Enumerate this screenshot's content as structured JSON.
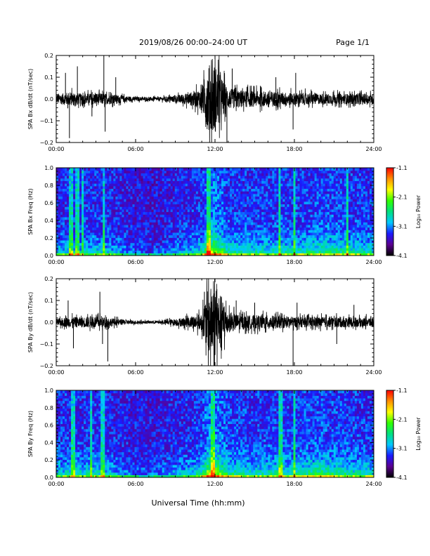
{
  "header": {
    "title": "2019/08/26  00:00–24:00 UT",
    "page_label": "Page 1/1"
  },
  "footer": {
    "xlabel": "Universal Time (hh:mm)"
  },
  "colors": {
    "trace": "#000000",
    "colorbar": [
      "#000000",
      "#5b0090",
      "#1a1aff",
      "#00c8ff",
      "#00e080",
      "#30ff00",
      "#ffff00",
      "#ff9000",
      "#ff0000"
    ]
  },
  "chart_data": [
    {
      "type": "line",
      "ylabel": "SPA Bx dB/dt (nT/sec)",
      "xlim": [
        0,
        24
      ],
      "ylim": [
        -0.2,
        0.2
      ],
      "xticks": [
        "00:00",
        "06:00",
        "12:00",
        "18:00",
        "24:00"
      ],
      "xtick_values": [
        0,
        6,
        12,
        18,
        24
      ],
      "yticks": [
        "−0.2",
        "−0.1",
        "0.0",
        "0.1",
        "0.2"
      ],
      "ytick_values": [
        -0.2,
        -0.1,
        0.0,
        0.1,
        0.2
      ],
      "amplitude_envelope": {
        "hour": [
          0,
          1,
          2,
          3,
          4,
          5,
          6,
          7,
          8,
          9,
          10,
          11,
          11.5,
          12,
          12.5,
          13,
          14,
          15,
          16,
          17,
          18,
          19,
          20,
          21,
          22,
          23,
          24
        ],
        "amplitude": [
          0.025,
          0.04,
          0.03,
          0.035,
          0.03,
          0.02,
          0.012,
          0.01,
          0.012,
          0.02,
          0.035,
          0.06,
          0.2,
          0.2,
          0.12,
          0.06,
          0.05,
          0.045,
          0.045,
          0.04,
          0.035,
          0.035,
          0.03,
          0.03,
          0.03,
          0.03,
          0.03
        ]
      },
      "spikes": [
        [
          0.7,
          0.12
        ],
        [
          1.0,
          -0.18
        ],
        [
          1.6,
          0.15
        ],
        [
          2.7,
          -0.08
        ],
        [
          3.6,
          0.2
        ],
        [
          3.7,
          -0.15
        ],
        [
          4.5,
          0.1
        ],
        [
          12.9,
          -0.2
        ],
        [
          13.3,
          0.14
        ],
        [
          16.6,
          0.1
        ],
        [
          17.9,
          -0.14
        ],
        [
          18.1,
          0.12
        ]
      ]
    },
    {
      "type": "heatmap",
      "ylabel": "SPA Bx Freq (Hz)",
      "colorbar_label": "Log₁₀ Power",
      "colorbar_ticks": [
        "-1.1",
        "-2.1",
        "-3.1",
        "-4.1"
      ],
      "colorbar_range": [
        -4.1,
        -1.1
      ],
      "xlim": [
        0,
        24
      ],
      "ylim": [
        0,
        1.0
      ],
      "xticks": [
        "00:00",
        "06:00",
        "12:00",
        "18:00",
        "24:00"
      ],
      "xtick_values": [
        0,
        6,
        12,
        18,
        24
      ],
      "yticks": [
        "0.0",
        "0.2",
        "0.4",
        "0.6",
        "0.8",
        "1.0"
      ],
      "ytick_values": [
        0,
        0.2,
        0.4,
        0.6,
        0.8,
        1.0
      ],
      "activity_by_hour": {
        "hour": [
          0,
          1,
          2,
          3,
          4,
          5,
          6,
          7,
          8,
          9,
          10,
          11,
          11.5,
          12,
          12.5,
          13,
          14,
          15,
          16,
          17,
          18,
          19,
          20,
          21,
          22,
          23,
          24
        ],
        "level": [
          0.35,
          0.45,
          0.4,
          0.45,
          0.4,
          0.3,
          0.2,
          0.15,
          0.2,
          0.3,
          0.4,
          0.5,
          1.0,
          0.95,
          0.75,
          0.55,
          0.5,
          0.5,
          0.5,
          0.5,
          0.5,
          0.55,
          0.6,
          0.6,
          0.55,
          0.5,
          0.5
        ]
      },
      "bright_streak_hours": [
        1.1,
        1.6,
        2.0,
        3.6,
        11.5,
        16.9,
        18.0,
        22.0
      ]
    },
    {
      "type": "line",
      "ylabel": "SPA By dB/dt (nT/sec)",
      "xlim": [
        0,
        24
      ],
      "ylim": [
        -0.2,
        0.2
      ],
      "xticks": [
        "00:00",
        "06:00",
        "12:00",
        "18:00",
        "24:00"
      ],
      "xtick_values": [
        0,
        6,
        12,
        18,
        24
      ],
      "yticks": [
        "−0.2",
        "−0.1",
        "0.0",
        "0.1",
        "0.2"
      ],
      "ytick_values": [
        -0.2,
        -0.1,
        0.0,
        0.1,
        0.2
      ],
      "amplitude_envelope": {
        "hour": [
          0,
          1,
          2,
          3,
          4,
          5,
          6,
          7,
          8,
          9,
          10,
          11,
          11.5,
          12,
          12.5,
          13,
          14,
          15,
          16,
          17,
          18,
          19,
          20,
          21,
          22,
          23,
          24
        ],
        "amplitude": [
          0.02,
          0.03,
          0.03,
          0.035,
          0.025,
          0.015,
          0.01,
          0.008,
          0.01,
          0.02,
          0.03,
          0.05,
          0.2,
          0.2,
          0.15,
          0.06,
          0.04,
          0.04,
          0.04,
          0.035,
          0.03,
          0.03,
          0.03,
          0.03,
          0.03,
          0.025,
          0.03
        ]
      },
      "spikes": [
        [
          0.9,
          0.1
        ],
        [
          1.3,
          -0.12
        ],
        [
          3.3,
          0.14
        ],
        [
          3.5,
          -0.1
        ],
        [
          3.9,
          -0.18
        ],
        [
          11.2,
          0.14
        ],
        [
          13.6,
          0.1
        ],
        [
          15.0,
          0.09
        ],
        [
          17.9,
          -0.2
        ],
        [
          18.2,
          0.09
        ],
        [
          21.2,
          -0.1
        ],
        [
          22.5,
          0.08
        ]
      ]
    },
    {
      "type": "heatmap",
      "ylabel": "SPA By Freq (Hz)",
      "colorbar_label": "Log₁₀ Power",
      "colorbar_ticks": [
        "-1.1",
        "-2.1",
        "-3.1",
        "-4.1"
      ],
      "colorbar_range": [
        -4.1,
        -1.1
      ],
      "xlim": [
        0,
        24
      ],
      "ylim": [
        0,
        1.0
      ],
      "xticks": [
        "00:00",
        "06:00",
        "12:00",
        "18:00",
        "24:00"
      ],
      "xtick_values": [
        0,
        6,
        12,
        18,
        24
      ],
      "yticks": [
        "0.0",
        "0.2",
        "0.4",
        "0.6",
        "0.8",
        "1.0"
      ],
      "ytick_values": [
        0,
        0.2,
        0.4,
        0.6,
        0.8,
        1.0
      ],
      "activity_by_hour": {
        "hour": [
          0,
          1,
          2,
          3,
          4,
          5,
          6,
          7,
          8,
          9,
          10,
          11,
          11.5,
          12,
          12.5,
          13,
          14,
          15,
          16,
          17,
          18,
          19,
          20,
          21,
          22,
          23,
          24
        ],
        "level": [
          0.4,
          0.5,
          0.45,
          0.5,
          0.4,
          0.3,
          0.25,
          0.2,
          0.25,
          0.35,
          0.4,
          0.55,
          1.0,
          1.0,
          0.8,
          0.6,
          0.55,
          0.5,
          0.55,
          0.55,
          0.55,
          0.6,
          0.65,
          0.6,
          0.55,
          0.5,
          0.5
        ]
      },
      "bright_streak_hours": [
        1.3,
        2.6,
        3.5,
        11.8,
        17.0,
        18.0
      ]
    }
  ]
}
